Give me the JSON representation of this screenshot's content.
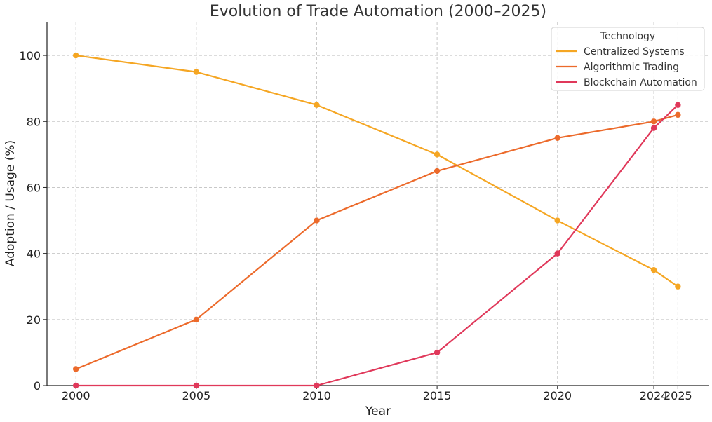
{
  "chart_data": {
    "type": "line",
    "title": "Evolution of Trade Automation (2000–2025)",
    "xlabel": "Year",
    "ylabel": "Adoption / Usage (%)",
    "x": [
      2000,
      2005,
      2010,
      2015,
      2020,
      2024,
      2025
    ],
    "x_tick_labels": [
      "2000",
      "2005",
      "2010",
      "2015",
      "2020",
      "2024",
      "2025"
    ],
    "xlim": [
      1998.8,
      2026.3
    ],
    "ylim": [
      0,
      110
    ],
    "y_ticks": [
      0,
      20,
      40,
      60,
      80,
      100
    ],
    "grid": true,
    "legend": {
      "title": "Technology",
      "placement": "top-right"
    },
    "series": [
      {
        "name": "Centralized Systems",
        "color": "#F5A623",
        "values": [
          100,
          95,
          85,
          70,
          50,
          35,
          30
        ]
      },
      {
        "name": "Algorithmic Trading",
        "color": "#EC6A2B",
        "values": [
          5,
          20,
          50,
          65,
          75,
          80,
          82
        ]
      },
      {
        "name": "Blockchain Automation",
        "color": "#E0385A",
        "values": [
          0,
          0,
          0,
          10,
          40,
          78,
          85
        ]
      }
    ]
  }
}
